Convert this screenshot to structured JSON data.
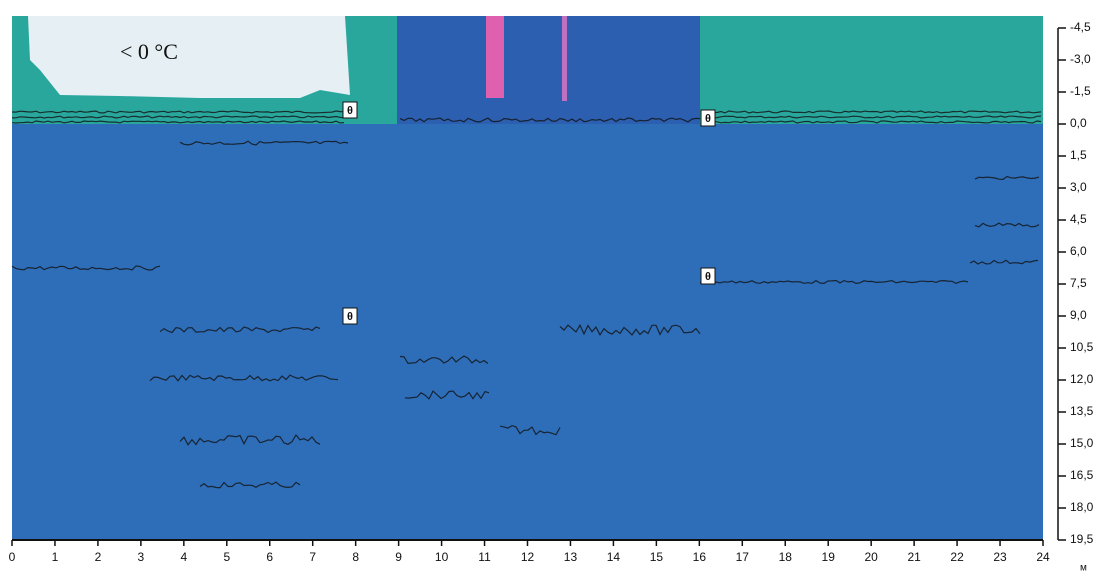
{
  "chart_data": {
    "type": "radargram",
    "annotation": "< 0 °C",
    "markers": [
      "θ",
      "θ",
      "θ",
      "θ"
    ],
    "x_unit": "м",
    "xlim": [
      0,
      24
    ],
    "xticks": [
      0,
      1,
      2,
      3,
      4,
      5,
      6,
      7,
      8,
      9,
      10,
      11,
      12,
      13,
      14,
      15,
      16,
      17,
      18,
      19,
      20,
      21,
      22,
      23,
      24
    ],
    "ylim": [
      -4.5,
      19.5
    ],
    "yticks": [
      {
        "value": -4.5,
        "label": "-4,5"
      },
      {
        "value": -3,
        "label": "-3,0"
      },
      {
        "value": -1.5,
        "label": "-1,5"
      },
      {
        "value": 0,
        "label": "0,0"
      },
      {
        "value": 1.5,
        "label": "1,5"
      },
      {
        "value": 3,
        "label": "3,0"
      },
      {
        "value": 4.5,
        "label": "4,5"
      },
      {
        "value": 6,
        "label": "6,0"
      },
      {
        "value": 7.5,
        "label": "7,5"
      },
      {
        "value": 9,
        "label": "9,0"
      },
      {
        "value": 10.5,
        "label": "10,5"
      },
      {
        "value": 12,
        "label": "12,0"
      },
      {
        "value": 13.5,
        "label": "13,5"
      },
      {
        "value": 15,
        "label": "15,0"
      },
      {
        "value": 16.5,
        "label": "16,5"
      },
      {
        "value": 18,
        "label": "18,0"
      },
      {
        "value": 19.5,
        "label": "19,5"
      }
    ]
  }
}
